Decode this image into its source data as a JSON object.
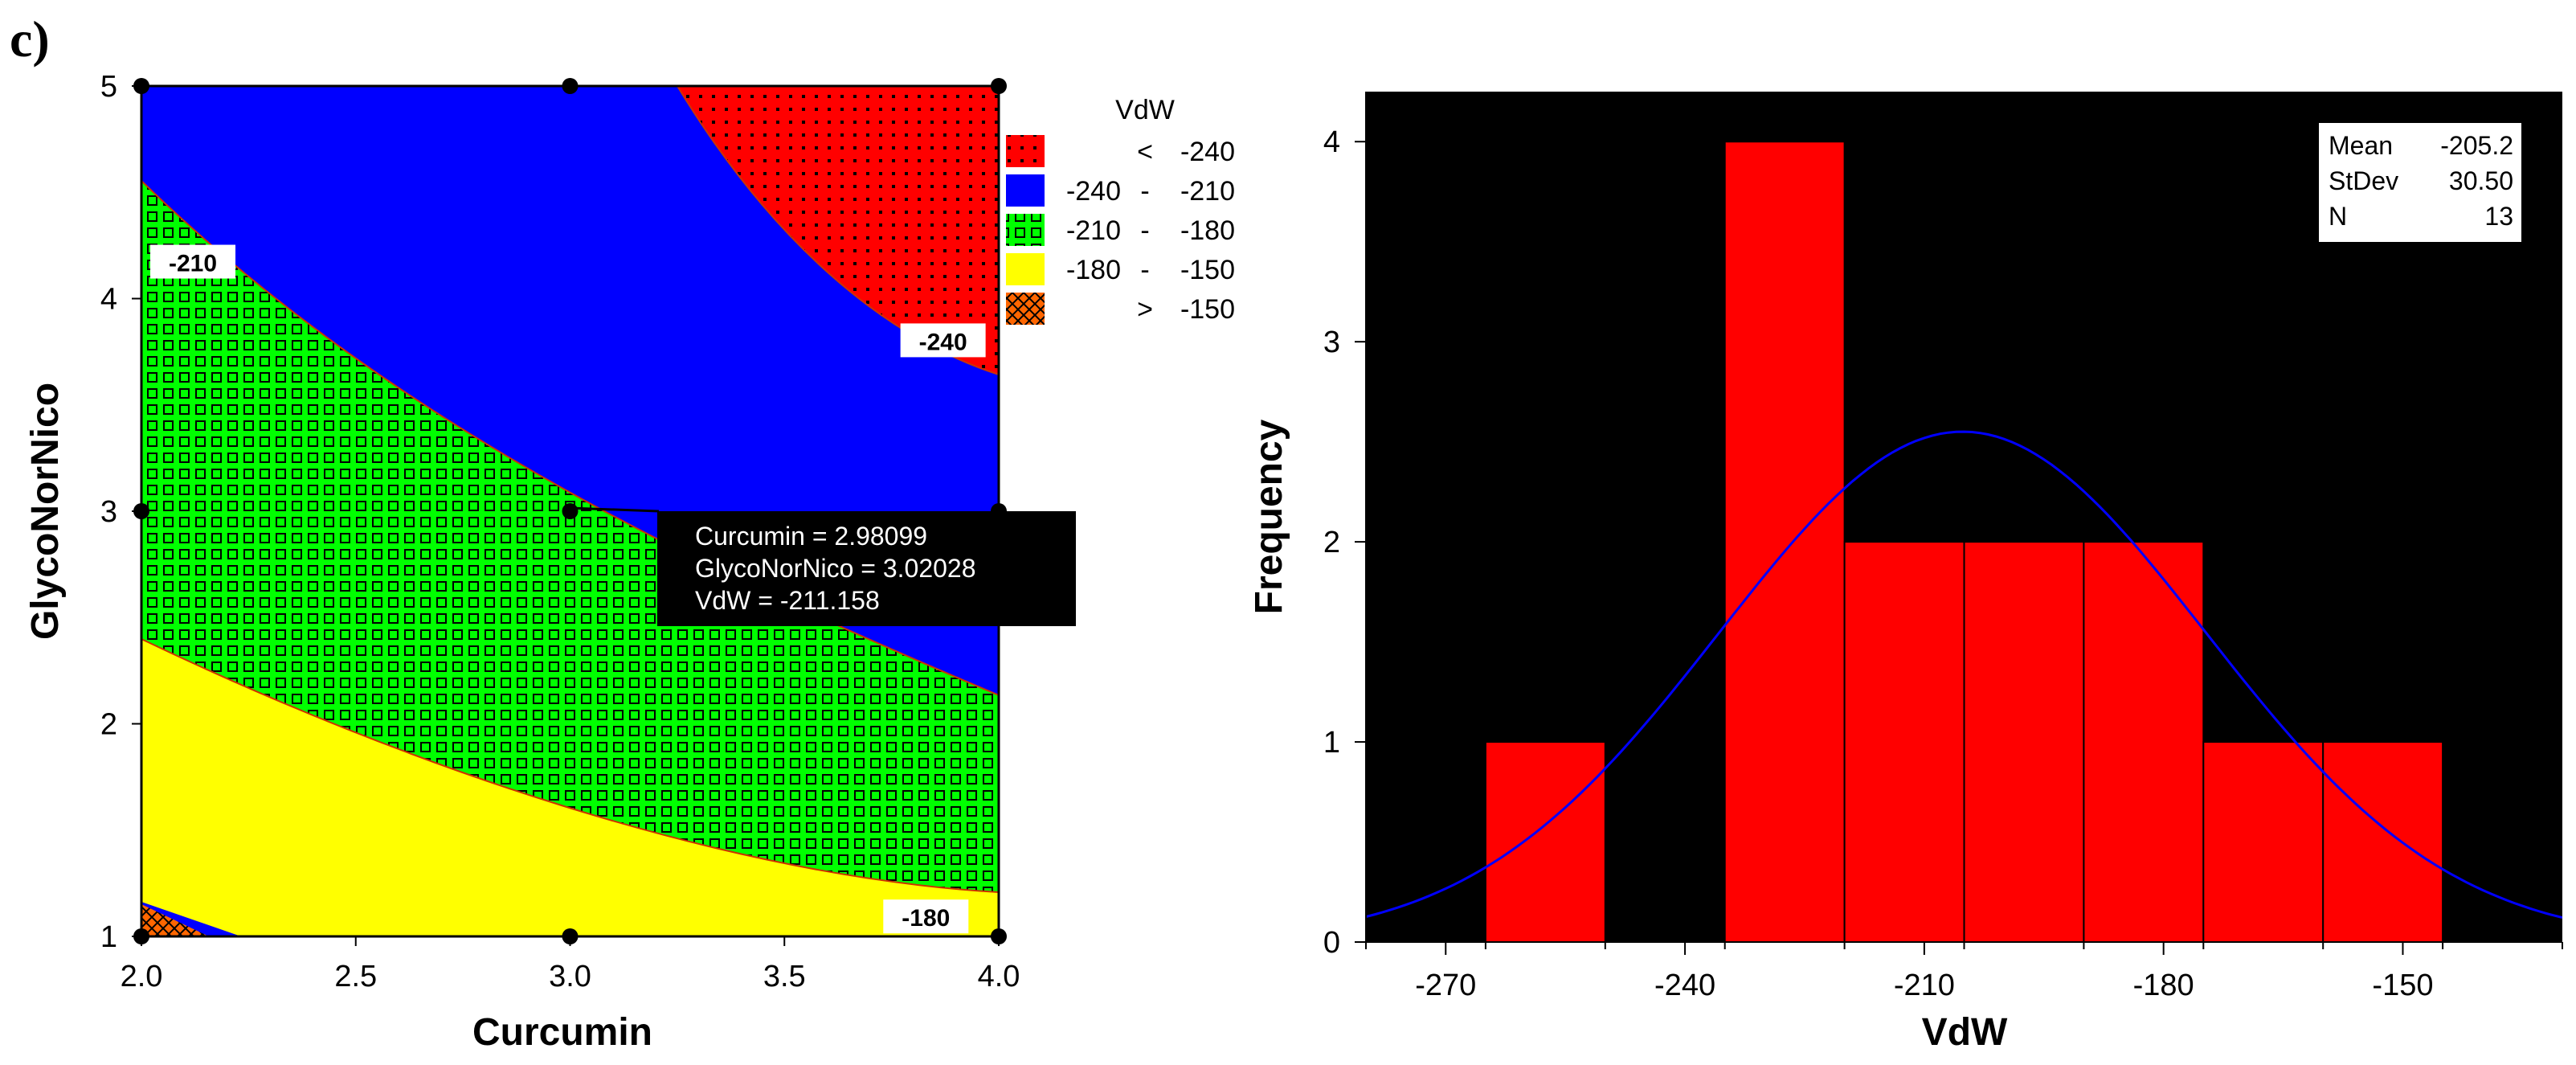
{
  "panel_label": "c)",
  "chart_data": [
    {
      "type": "contour",
      "title": "",
      "xlabel": "Curcumin",
      "ylabel": "GlycoNorNico",
      "xlim": [
        2.0,
        4.0
      ],
      "ylim": [
        1,
        5
      ],
      "xticks": [
        "2.0",
        "2.5",
        "3.0",
        "3.5",
        "4.0"
      ],
      "yticks": [
        "1",
        "2",
        "3",
        "4",
        "5"
      ],
      "legend_title": "VdW",
      "legend": [
        {
          "op": "<",
          "low": "",
          "high": "-240",
          "color": "#ff0000",
          "pattern": "dots"
        },
        {
          "op": "-",
          "low": "-240",
          "high": "-210",
          "color": "#0000ff",
          "pattern": "solid"
        },
        {
          "op": "-",
          "low": "-210",
          "high": "-180",
          "color": "#00ff00",
          "pattern": "squares"
        },
        {
          "op": "-",
          "low": "-180",
          "high": "-150",
          "color": "#ffff00",
          "pattern": "solid"
        },
        {
          "op": ">",
          "low": "",
          "high": "-150",
          "color": "#ff6600",
          "pattern": "crosshatch"
        }
      ],
      "contour_labels": [
        {
          "text": "-210",
          "x": 2.12,
          "y": 4.17
        },
        {
          "text": "-240",
          "x": 3.87,
          "y": 3.8
        },
        {
          "text": "-180",
          "x": 3.83,
          "y": 1.09
        }
      ],
      "design_points": [
        {
          "x": 2.0,
          "y": 5
        },
        {
          "x": 3.0,
          "y": 5
        },
        {
          "x": 4.0,
          "y": 5
        },
        {
          "x": 2.0,
          "y": 3
        },
        {
          "x": 3.0,
          "y": 3
        },
        {
          "x": 4.0,
          "y": 3
        },
        {
          "x": 2.0,
          "y": 1
        },
        {
          "x": 3.0,
          "y": 1
        },
        {
          "x": 4.0,
          "y": 1
        }
      ],
      "tooltip": [
        "Curcumin = 2.98099",
        "GlycoNorNico = 3.02028",
        "VdW = -211.158"
      ]
    },
    {
      "type": "histogram",
      "title": "",
      "xlabel": "VdW",
      "ylabel": "Frequency",
      "xlim": [
        -280,
        -130
      ],
      "ylim": [
        0,
        4.25
      ],
      "xticks": [
        "-270",
        "-240",
        "-210",
        "-180",
        "-150"
      ],
      "yticks": [
        "0",
        "1",
        "2",
        "3",
        "4"
      ],
      "bins": [
        {
          "start": -265,
          "end": -250,
          "count": 1
        },
        {
          "start": -250,
          "end": -235,
          "count": 0
        },
        {
          "start": -235,
          "end": -220,
          "count": 4
        },
        {
          "start": -220,
          "end": -205,
          "count": 2
        },
        {
          "start": -205,
          "end": -190,
          "count": 2
        },
        {
          "start": -190,
          "end": -175,
          "count": 2
        },
        {
          "start": -175,
          "end": -160,
          "count": 1
        },
        {
          "start": -160,
          "end": -145,
          "count": 1
        }
      ],
      "bar_color": "#ff0000",
      "background": "#000000",
      "curve_color": "#0000ff",
      "stats": [
        {
          "label": "Mean",
          "value": "-205.2"
        },
        {
          "label": "StDev",
          "value": "30.50"
        },
        {
          "label": "N",
          "value": "13"
        }
      ],
      "normal_fit": {
        "mean": -205.2,
        "stdev": 30.5,
        "n": 13,
        "binwidth": 15
      }
    }
  ]
}
